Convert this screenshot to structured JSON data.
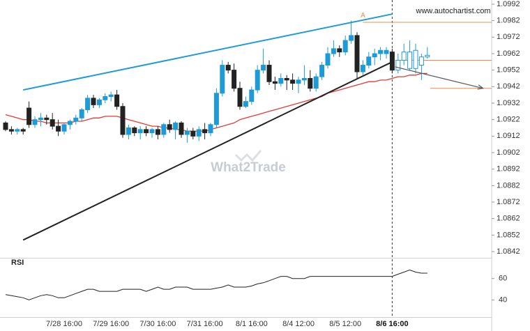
{
  "chart_data": {
    "type": "candlestick",
    "source": "www.autochartist.com",
    "watermark": "What2Trade",
    "categories": [
      null,
      null,
      null,
      null,
      null,
      null,
      null,
      null,
      null,
      null,
      "7/28 16:00",
      null,
      null,
      null,
      null,
      null,
      null,
      null,
      "7/29 16:00",
      null,
      null,
      null,
      null,
      null,
      null,
      null,
      "7/30 16:00",
      null,
      null,
      null,
      null,
      null,
      null,
      null,
      "7/31 16:00",
      null,
      null,
      null,
      null,
      null,
      null,
      null,
      "8/1 16:00",
      null,
      null,
      null,
      null,
      null,
      null,
      null,
      "8/4 12:00",
      null,
      null,
      null,
      null,
      null,
      null,
      null,
      "8/5 12:00",
      null,
      null,
      null,
      null,
      null,
      null,
      null,
      "8/6 16:00",
      null,
      null,
      null,
      null,
      null,
      null
    ],
    "open": [
      1.092,
      1.0916,
      1.0915,
      1.0916,
      1.0929,
      1.0919,
      1.0922,
      1.0923,
      1.0922,
      1.0918,
      1.0915,
      1.0919,
      1.0921,
      1.0923,
      1.0928,
      1.0935,
      1.0931,
      1.0934,
      1.0936,
      1.0937,
      1.093,
      1.0913,
      1.0917,
      1.0914,
      1.0916,
      1.0914,
      1.0916,
      1.0913,
      1.0919,
      1.0916,
      1.092,
      1.0913,
      1.0915,
      1.0912,
      1.0916,
      1.0914,
      1.0919,
      1.0938,
      1.0955,
      1.0952,
      1.0941,
      1.093,
      1.0933,
      1.094,
      1.0952,
      1.0955,
      1.0945,
      1.0944,
      1.0947,
      1.0946,
      1.0944,
      1.0946,
      1.0947,
      1.0941,
      1.0948,
      1.0955,
      1.0962,
      1.0965,
      1.0963,
      1.097,
      1.0973,
      1.0951,
      1.0955,
      1.096,
      1.0962,
      1.0962,
      1.0963,
      1.0952,
      1.0958,
      1.0963,
      1.0953,
      1.0955,
      1.096
    ],
    "high": [
      1.0921,
      1.0918,
      1.0917,
      1.0917,
      1.0933,
      1.0924,
      1.0926,
      1.0925,
      1.0926,
      1.0922,
      1.092,
      1.0922,
      1.0925,
      1.0929,
      1.0937,
      1.0937,
      1.0935,
      1.0938,
      1.0939,
      1.094,
      1.0932,
      1.0919,
      1.0918,
      1.0918,
      1.0918,
      1.0917,
      1.0918,
      1.092,
      1.0922,
      1.0921,
      1.0921,
      1.0917,
      1.0917,
      1.0918,
      1.092,
      1.092,
      1.0941,
      1.0958,
      1.0957,
      1.0956,
      1.0945,
      1.0936,
      1.0942,
      1.0955,
      1.0965,
      1.0958,
      1.0948,
      1.095,
      1.0949,
      1.095,
      1.0948,
      1.0955,
      1.0952,
      1.095,
      1.0957,
      1.0966,
      1.097,
      1.0967,
      1.0973,
      1.0982,
      1.0975,
      1.0958,
      1.0963,
      1.0965,
      1.0966,
      1.0966,
      1.0965,
      1.0962,
      1.0968,
      1.097,
      1.0968,
      1.0962,
      1.0966
    ],
    "low": [
      1.0915,
      1.0913,
      1.0913,
      1.0913,
      1.0917,
      1.0917,
      1.0918,
      1.0919,
      1.0916,
      1.0912,
      1.0913,
      1.0916,
      1.0919,
      1.0921,
      1.0926,
      1.0929,
      1.0929,
      1.0932,
      1.0933,
      1.0928,
      1.0911,
      1.091,
      1.0912,
      1.091,
      1.0912,
      1.0911,
      1.091,
      1.0911,
      1.0914,
      1.091,
      1.0911,
      1.0908,
      1.091,
      1.0909,
      1.091,
      1.0912,
      1.0917,
      1.0936,
      1.095,
      1.0939,
      1.0928,
      1.0929,
      1.0931,
      1.0938,
      1.095,
      1.0943,
      1.094,
      1.0942,
      1.094,
      1.094,
      1.0938,
      1.0943,
      1.0939,
      1.0939,
      1.0946,
      1.0953,
      1.096,
      1.096,
      1.0961,
      1.0968,
      1.0947,
      1.0949,
      1.0953,
      1.0955,
      1.0958,
      1.0959,
      1.095,
      1.095,
      1.0955,
      1.0952,
      1.095,
      1.0946,
      1.0959
    ],
    "close": [
      1.0916,
      1.0915,
      1.0916,
      1.0915,
      1.0919,
      1.0922,
      1.0923,
      1.0922,
      1.0918,
      1.0915,
      1.0919,
      1.0921,
      1.0923,
      1.0928,
      1.0935,
      1.0931,
      1.0934,
      1.0936,
      1.0937,
      1.093,
      1.0913,
      1.0917,
      1.0914,
      1.0916,
      1.0914,
      1.0916,
      1.0913,
      1.0919,
      1.0916,
      1.092,
      1.0913,
      1.0915,
      1.0912,
      1.0916,
      1.0914,
      1.0919,
      1.0938,
      1.0955,
      1.0952,
      1.0941,
      1.093,
      1.0933,
      1.094,
      1.0952,
      1.0955,
      1.0945,
      1.0944,
      1.0947,
      1.0946,
      1.0944,
      1.0946,
      1.0947,
      1.0941,
      1.0948,
      1.0955,
      1.0962,
      1.0965,
      1.0963,
      1.097,
      1.0973,
      1.0951,
      1.0955,
      1.096,
      1.0962,
      1.0964,
      1.0964,
      1.0952,
      1.0958,
      1.0963,
      1.0953,
      1.0964,
      1.096,
      1.0961
    ],
    "up_color": "#1e9bd7",
    "down_color": "#222222",
    "moving_average": {
      "color": "#e53935",
      "values": [
        1.0925,
        1.0924,
        1.0923,
        1.0922,
        1.0922,
        1.0921,
        1.0921,
        1.092,
        1.092,
        1.092,
        1.092,
        1.092,
        1.0921,
        1.0921,
        1.0922,
        1.0923,
        1.0923,
        1.0924,
        1.0924,
        1.0924,
        1.0923,
        1.0922,
        1.0921,
        1.092,
        1.0919,
        1.0918,
        1.0918,
        1.0917,
        1.0917,
        1.0916,
        1.0916,
        1.0915,
        1.0915,
        1.0915,
        1.0915,
        1.0916,
        1.0917,
        1.0918,
        1.0919,
        1.092,
        1.0922,
        1.0923,
        1.0924,
        1.0925,
        1.0926,
        1.0927,
        1.0928,
        1.0929,
        1.093,
        1.0931,
        1.0932,
        1.0933,
        1.0934,
        1.0935,
        1.0936,
        1.0938,
        1.0939,
        1.094,
        1.0941,
        1.0942,
        1.0943,
        1.0944,
        1.0945,
        1.0945,
        1.0946,
        1.0946,
        1.0947,
        1.0948,
        1.0948,
        1.0949,
        1.0949,
        1.095,
        1.095
      ]
    },
    "ylim": [
      1.0838,
      1.0996
    ],
    "yticks": [
      1.0992,
      1.0982,
      1.0972,
      1.0962,
      1.0952,
      1.0942,
      1.0932,
      1.0922,
      1.0912,
      1.0902,
      1.0892,
      1.0882,
      1.0872,
      1.0862,
      1.0852,
      1.0842
    ],
    "vertical_marker": 66,
    "trendlines": [
      {
        "color": "#1e9bd7",
        "x": [
          3,
          66
        ],
        "y": [
          1.094,
          1.0986
        ]
      },
      {
        "color": "#222222",
        "x": [
          3,
          66
        ],
        "y": [
          1.0849,
          1.0957
        ]
      }
    ],
    "levels": [
      {
        "color": "#f08a4b",
        "value": 1.0981,
        "from": 61
      },
      {
        "color": "#f08a4b",
        "value": 1.0958,
        "from": 66.5
      },
      {
        "color": "#f08a4b",
        "value": 1.0941,
        "from": 72.5
      }
    ],
    "forecast_arrow": {
      "color": "#555555",
      "x": [
        66.5,
        81.5
      ],
      "y": [
        1.0954,
        1.0941
      ]
    },
    "pattern_label": {
      "text": "A",
      "x": 61,
      "y": 1.0985,
      "color": "#f08a4b"
    },
    "rsi": {
      "label": "RSI",
      "color": "#222222",
      "ylim": [
        24,
        79
      ],
      "yticks": [
        60,
        40
      ],
      "values": [
        45,
        44,
        43,
        42,
        40,
        42,
        44,
        45,
        44,
        42,
        42,
        44,
        46,
        48,
        50,
        50,
        48,
        48,
        48,
        48,
        50,
        50,
        50,
        50,
        48,
        50,
        52,
        50,
        50,
        52,
        52,
        52,
        50,
        50,
        50,
        50,
        51,
        52,
        54,
        52,
        52,
        52,
        53,
        55,
        56,
        58,
        60,
        62,
        62,
        60,
        60,
        60,
        62,
        62,
        62,
        62,
        62,
        62,
        62,
        62,
        62,
        62,
        62,
        62,
        62,
        62,
        62,
        64,
        66,
        68,
        66,
        65,
        65
      ]
    }
  }
}
